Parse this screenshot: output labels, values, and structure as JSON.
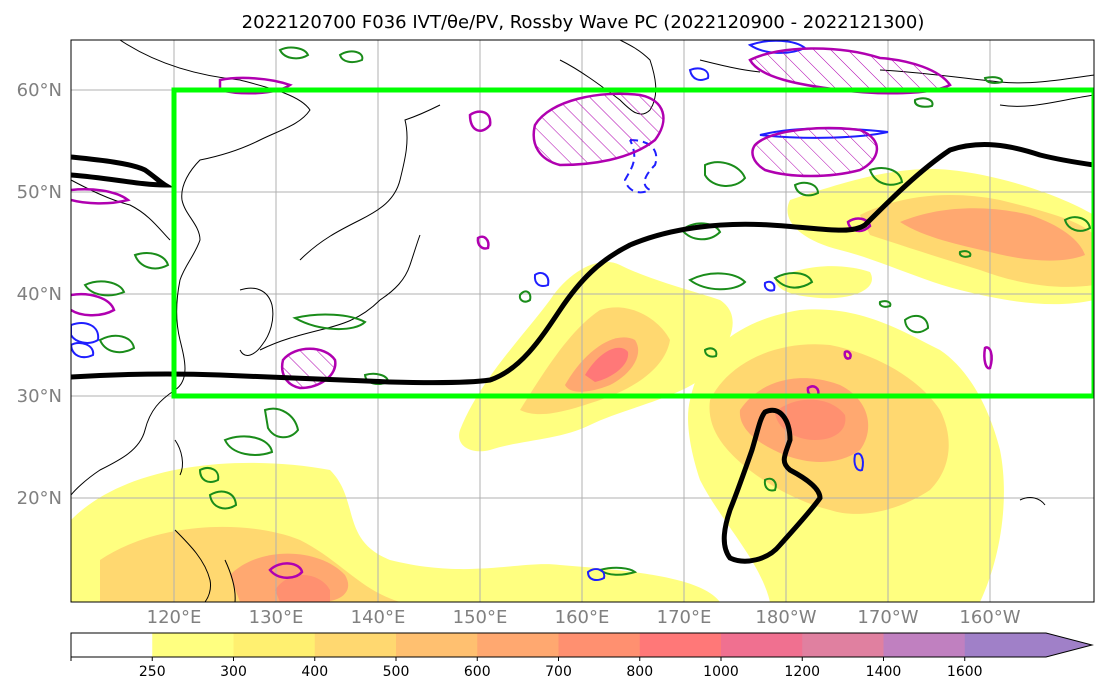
{
  "title": "2022120700 F036 IVT/θe/PV, Rossby Wave PC (2022120900 - 2022121300)",
  "map": {
    "lat_labels": [
      "60°N",
      "50°N",
      "40°N",
      "30°N",
      "20°N"
    ],
    "lon_labels": [
      "120°E",
      "130°E",
      "140°E",
      "150°E",
      "160°E",
      "170°E",
      "180°W",
      "170°W",
      "160°W"
    ],
    "box_color": "#00ff00",
    "trough_color": "#000000",
    "pv_color": "#b000b0",
    "theta_e_color": "#1a8c1a",
    "blue_color": "#1f1fff"
  },
  "colorbar": {
    "labels": [
      "250",
      "300",
      "400",
      "500",
      "600",
      "700",
      "800",
      "1000",
      "1200",
      "1400",
      "1600"
    ],
    "colors": [
      "#ffffff",
      "#ffff80",
      "#fff070",
      "#ffd870",
      "#ffc070",
      "#ffa870",
      "#ff9070",
      "#ff7878",
      "#f07090",
      "#e080a0",
      "#c080c0",
      "#a080c8"
    ]
  }
}
